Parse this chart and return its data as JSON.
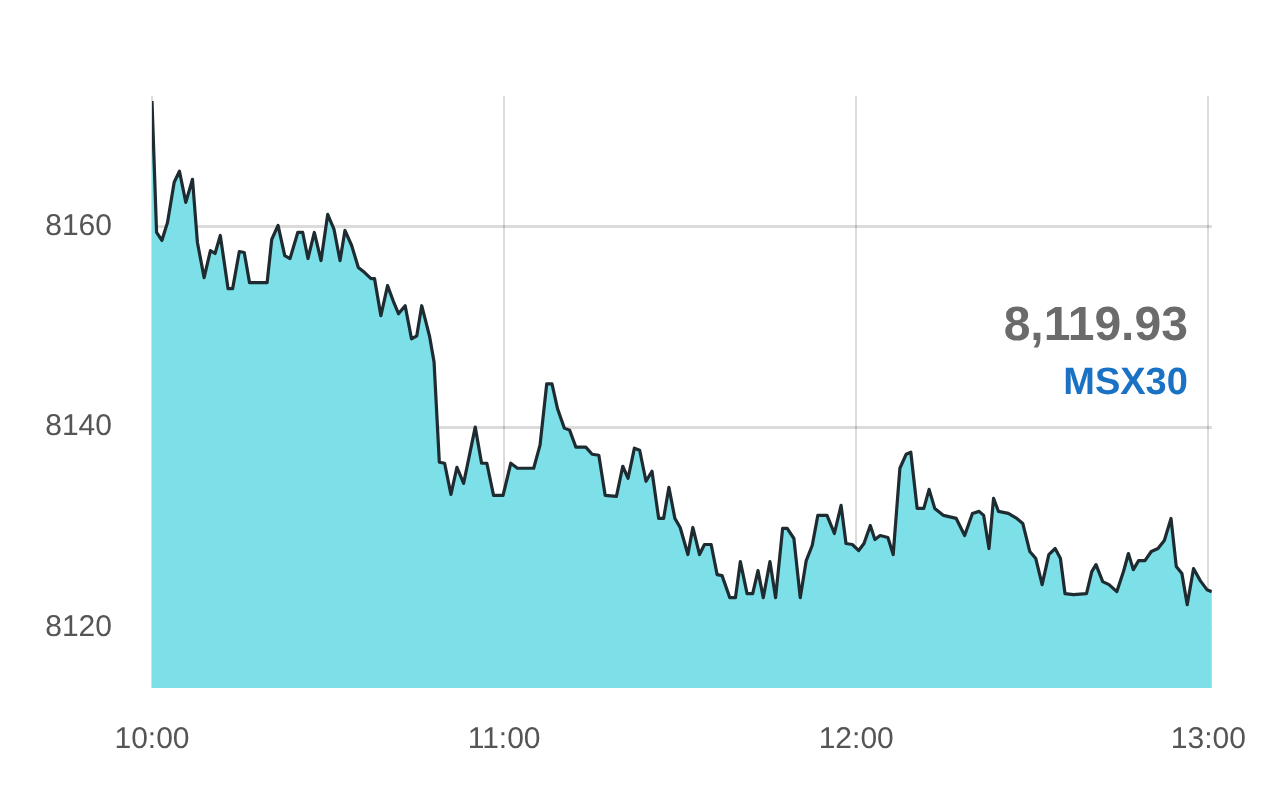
{
  "chart_data": {
    "type": "area",
    "annotations": [
      "8,119.93",
      "MSX30"
    ],
    "x": [
      10.0,
      10.013,
      10.028,
      10.044,
      10.063,
      10.078,
      10.096,
      10.115,
      10.129,
      10.148,
      10.166,
      10.179,
      10.194,
      10.216,
      10.229,
      10.248,
      10.262,
      10.277,
      10.327,
      10.34,
      10.358,
      10.377,
      10.392,
      10.414,
      10.428,
      10.443,
      10.461,
      10.48,
      10.499,
      10.517,
      10.534,
      10.548,
      10.567,
      10.586,
      10.604,
      10.622,
      10.632,
      10.65,
      10.669,
      10.687,
      10.7,
      10.719,
      10.737,
      10.752,
      10.766,
      10.788,
      10.801,
      10.816,
      10.831,
      10.849,
      10.866,
      10.885,
      10.918,
      10.936,
      10.951,
      10.97,
      10.997,
      11.019,
      11.038,
      11.084,
      11.102,
      11.121,
      11.136,
      11.152,
      11.171,
      11.186,
      11.204,
      11.232,
      11.25,
      11.269,
      11.287,
      11.319,
      11.337,
      11.352,
      11.37,
      11.385,
      11.403,
      11.42,
      11.439,
      11.453,
      11.468,
      11.485,
      11.5,
      11.522,
      11.536,
      11.555,
      11.569,
      11.588,
      11.605,
      11.619,
      11.641,
      11.657,
      11.671,
      11.69,
      11.706,
      11.721,
      11.736,
      11.755,
      11.771,
      11.791,
      11.804,
      11.823,
      11.841,
      11.858,
      11.875,
      11.891,
      11.917,
      11.938,
      11.957,
      11.971,
      11.989,
      12.007,
      12.022,
      12.04,
      12.053,
      12.068,
      12.09,
      12.105,
      12.124,
      12.142,
      12.155,
      12.173,
      12.192,
      12.207,
      12.223,
      12.248,
      12.284,
      12.308,
      12.33,
      12.349,
      12.362,
      12.377,
      12.39,
      12.404,
      12.432,
      12.456,
      12.473,
      12.493,
      12.51,
      12.528,
      12.547,
      12.565,
      12.58,
      12.593,
      12.617,
      12.654,
      12.669,
      12.681,
      12.7,
      12.718,
      12.74,
      12.759,
      12.773,
      12.787,
      12.802,
      12.82,
      12.838,
      12.857,
      12.875,
      12.894,
      12.909,
      12.925,
      12.94,
      12.958,
      12.977,
      12.996,
      13.01
    ],
    "values": [
      8172.5,
      8159.4,
      8158.6,
      8160.4,
      8164.4,
      8165.5,
      8162.4,
      8164.7,
      8158.4,
      8154.9,
      8157.6,
      8157.3,
      8159.1,
      8153.8,
      8153.8,
      8157.5,
      8157.4,
      8154.4,
      8154.4,
      8158.7,
      8160.1,
      8157.1,
      8156.8,
      8159.4,
      8159.4,
      8156.8,
      8159.4,
      8156.6,
      8161.2,
      8159.7,
      8156.6,
      8159.6,
      8158.1,
      8155.9,
      8155.4,
      8154.8,
      8154.8,
      8151.1,
      8154.1,
      8152.4,
      8151.3,
      8152.1,
      8148.8,
      8149.1,
      8152.1,
      8149.1,
      8146.5,
      8136.5,
      8136.4,
      8133.3,
      8136.0,
      8134.4,
      8140.0,
      8136.4,
      8136.4,
      8133.2,
      8133.2,
      8136.4,
      8135.9,
      8135.9,
      8138.2,
      8144.3,
      8144.3,
      8141.8,
      8139.9,
      8139.7,
      8138.0,
      8138.0,
      8137.3,
      8137.2,
      8133.2,
      8133.1,
      8136.1,
      8134.9,
      8137.9,
      8137.7,
      8134.6,
      8135.6,
      8130.9,
      8130.9,
      8134.0,
      8130.9,
      8130.0,
      8127.3,
      8130.0,
      8127.3,
      8128.3,
      8128.3,
      8125.3,
      8125.2,
      8123.0,
      8123.0,
      8126.6,
      8123.4,
      8123.4,
      8125.7,
      8123.0,
      8126.6,
      8123.0,
      8129.9,
      8129.9,
      8128.9,
      8123.0,
      8126.7,
      8128.2,
      8131.2,
      8131.2,
      8129.4,
      8132.2,
      8128.4,
      8128.3,
      8127.7,
      8128.4,
      8130.2,
      8128.8,
      8129.2,
      8129.0,
      8127.3,
      8135.9,
      8137.3,
      8137.5,
      8131.9,
      8131.9,
      8133.8,
      8131.9,
      8131.2,
      8130.9,
      8129.2,
      8131.4,
      8131.6,
      8131.2,
      8127.9,
      8132.9,
      8131.6,
      8131.4,
      8130.9,
      8130.4,
      8127.6,
      8126.9,
      8124.3,
      8127.3,
      8127.9,
      8126.9,
      8123.4,
      8123.3,
      8123.4,
      8125.6,
      8126.3,
      8124.6,
      8124.3,
      8123.6,
      8125.6,
      8127.4,
      8125.8,
      8126.7,
      8126.7,
      8127.6,
      8127.9,
      8128.7,
      8130.9,
      8126.1,
      8125.4,
      8122.3,
      8125.9,
      8124.7,
      8123.8,
      8123.6
    ],
    "color": "#7ddfe8",
    "xlim": [
      10,
      13.01
    ],
    "xticks": [
      {
        "value": 10,
        "label": "10:00"
      },
      {
        "value": 11,
        "label": "11:00"
      },
      {
        "value": 12,
        "label": "12:00"
      },
      {
        "value": 13,
        "label": "13:00"
      }
    ],
    "ylim": [
      8114,
      8173
    ],
    "yticks": [
      8120,
      8140,
      8160
    ],
    "grid": true,
    "marker": "none",
    "legend": false
  }
}
